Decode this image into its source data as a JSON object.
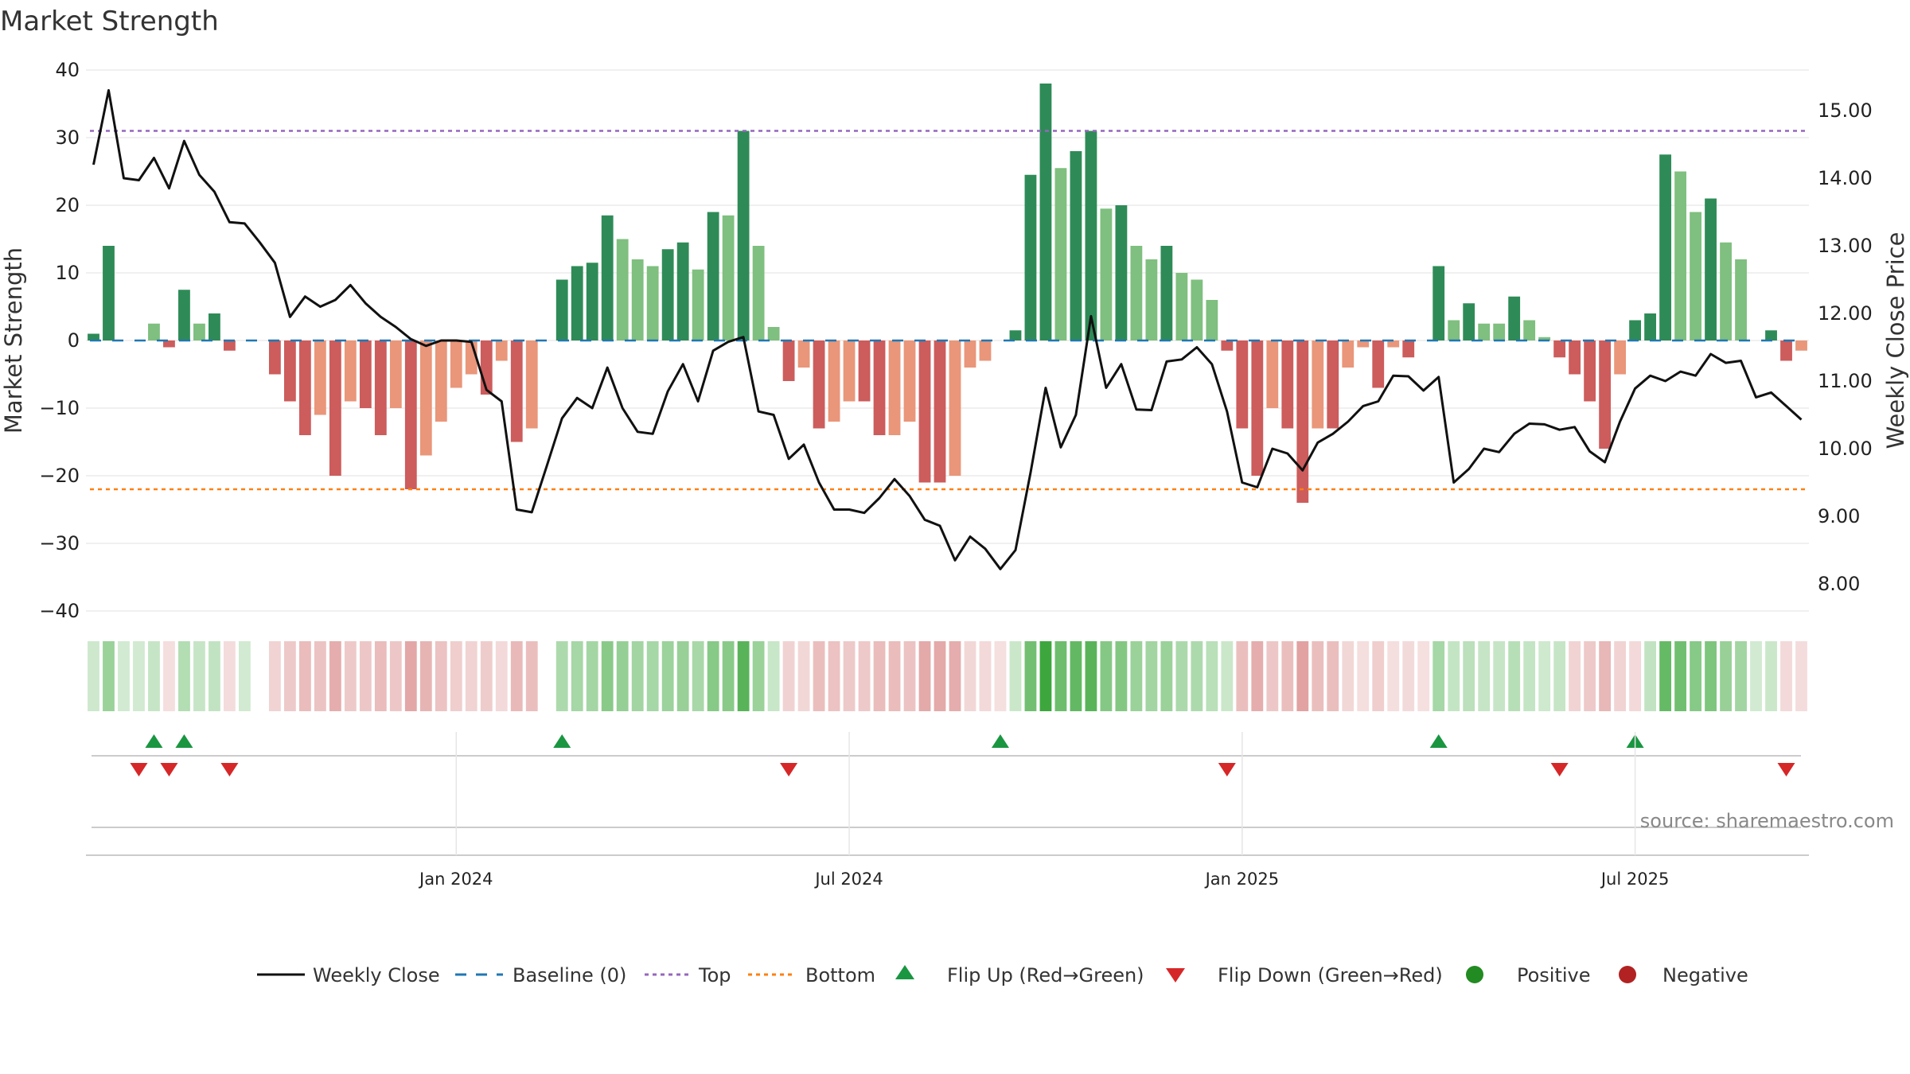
{
  "chart_data": {
    "type": "bar+line",
    "title": "Market Strength",
    "ylabel_left": "Market Strength",
    "ylabel_right": "Weekly Close Price",
    "ylim_left": [
      -40,
      40
    ],
    "ylim_right": [
      7.6,
      15.6
    ],
    "left_ticks": [
      40,
      30,
      20,
      10,
      0,
      -10,
      -20,
      -30,
      -40
    ],
    "right_ticks": [
      15.0,
      14.0,
      13.0,
      12.0,
      11.0,
      10.0,
      9.0,
      8.0
    ],
    "x_tick_labels": [
      "Jan 2024",
      "Jul 2024",
      "Jan 2025",
      "Jul 2025"
    ],
    "x_tick_weeks": [
      24,
      50,
      76,
      102
    ],
    "top_line": 31,
    "bottom_line": -22,
    "source": "source: sharemaestro.com",
    "colors": {
      "strong_pos": "#2e8b57",
      "weak_pos": "#7fbf7f",
      "strong_neg": "#cd5c5c",
      "weak_neg": "#e9967a",
      "price": "#111111",
      "baseline": "#1f77b4",
      "top": "#9467bd",
      "bottom": "#ff7f0e",
      "flip_up": "#1a9641",
      "flip_down": "#d62728",
      "positive": "#228b22",
      "negative": "#b22222"
    },
    "strength": [
      1,
      14,
      0,
      0,
      2.5,
      -1,
      7.5,
      2.5,
      4,
      -1.5,
      0,
      0,
      -5,
      -9,
      -14,
      -11,
      -20,
      -9,
      -10,
      -14,
      -10,
      -22,
      -17,
      -12,
      -7,
      -5,
      -8,
      -3,
      -15,
      -13,
      0,
      9,
      11,
      11.5,
      18.5,
      15,
      12,
      11,
      13.5,
      14.5,
      10.5,
      19,
      18.5,
      31,
      14,
      2,
      -6,
      -4,
      -13,
      -12,
      -9,
      -9,
      -14,
      -14,
      -12,
      -21,
      -21,
      -20,
      -4,
      -3,
      0,
      1.5,
      24.5,
      38,
      25.5,
      28,
      31,
      19.5,
      20,
      14,
      12,
      14,
      10,
      9,
      6,
      -1.5,
      -13,
      -20,
      -10,
      -13,
      -24,
      -13,
      -13,
      -4,
      -1,
      -7,
      -1,
      -2.5,
      0,
      11,
      3,
      5.5,
      2.5,
      2.5,
      6.5,
      3,
      0.5,
      -2.5,
      -5,
      -9,
      -16,
      -5,
      3,
      4,
      27.5,
      25,
      19,
      21,
      14.5,
      12,
      0,
      1.5,
      -3,
      -1.5
    ],
    "strength_strong": [
      1,
      1,
      0,
      0,
      0,
      1,
      1,
      0,
      1,
      1,
      0,
      0,
      1,
      1,
      1,
      0,
      1,
      0,
      1,
      1,
      0,
      1,
      0,
      0,
      0,
      0,
      1,
      0,
      1,
      0,
      0,
      1,
      1,
      1,
      1,
      0,
      0,
      0,
      1,
      1,
      0,
      1,
      0,
      1,
      0,
      0,
      1,
      0,
      1,
      0,
      0,
      1,
      1,
      0,
      0,
      1,
      1,
      0,
      0,
      0,
      0,
      1,
      1,
      1,
      0,
      1,
      1,
      0,
      1,
      0,
      0,
      1,
      0,
      0,
      0,
      1,
      1,
      1,
      0,
      1,
      1,
      0,
      1,
      0,
      0,
      1,
      0,
      1,
      0,
      1,
      0,
      1,
      0,
      0,
      1,
      0,
      0,
      1,
      1,
      1,
      1,
      0,
      1,
      1,
      1,
      0,
      0,
      1,
      0,
      0,
      0,
      1,
      1,
      0
    ],
    "price": [
      14.2,
      15.3,
      14.0,
      13.97,
      14.3,
      13.85,
      14.55,
      14.05,
      13.8,
      13.35,
      13.33,
      13.05,
      12.75,
      11.95,
      12.25,
      12.1,
      12.2,
      12.42,
      12.15,
      11.95,
      11.8,
      11.62,
      11.52,
      11.6,
      11.6,
      11.58,
      10.87,
      10.7,
      9.1,
      9.06,
      9.75,
      10.45,
      10.75,
      10.6,
      11.2,
      10.6,
      10.25,
      10.22,
      10.85,
      11.25,
      10.7,
      11.45,
      11.58,
      11.65,
      10.55,
      10.5,
      9.85,
      10.06,
      9.5,
      9.1,
      9.1,
      9.05,
      9.27,
      9.55,
      9.3,
      8.95,
      8.86,
      8.35,
      8.7,
      8.52,
      8.22,
      8.5,
      9.65,
      10.9,
      10.02,
      10.5,
      11.96,
      10.9,
      11.25,
      10.58,
      10.57,
      11.29,
      11.32,
      11.5,
      11.25,
      10.55,
      9.5,
      9.43,
      10.0,
      9.93,
      9.68,
      10.09,
      10.22,
      10.4,
      10.63,
      10.7,
      11.08,
      11.07,
      10.86,
      11.06,
      9.5,
      9.7,
      10.0,
      9.95,
      10.22,
      10.37,
      10.36,
      10.28,
      10.32,
      9.96,
      9.8,
      10.4,
      10.89,
      11.08,
      11.0,
      11.14,
      11.08,
      11.4,
      11.27,
      11.3,
      10.76,
      10.83,
      10.63,
      10.43
    ],
    "regime_strip": [
      {
        "start": 0,
        "end": 10,
        "sign": "mixed"
      },
      {
        "start": 12,
        "end": 29,
        "sign": "negative"
      },
      {
        "start": 31,
        "end": 45,
        "sign": "positive"
      },
      {
        "start": 46,
        "end": 60,
        "sign": "negative"
      },
      {
        "start": 61,
        "end": 75,
        "sign": "positive"
      },
      {
        "start": 76,
        "end": 88,
        "sign": "negative"
      },
      {
        "start": 89,
        "end": 97,
        "sign": "positive"
      },
      {
        "start": 98,
        "end": 102,
        "sign": "negative"
      },
      {
        "start": 103,
        "end": 111,
        "sign": "positive"
      },
      {
        "start": 112,
        "end": 114,
        "sign": "negative"
      }
    ],
    "flip_up_weeks": [
      4,
      6,
      31,
      60,
      89,
      102
    ],
    "flip_down_weeks": [
      3,
      5,
      9,
      46,
      75,
      97,
      112
    ],
    "legend": [
      {
        "label": "Weekly Close",
        "kind": "line"
      },
      {
        "label": "Baseline (0)",
        "kind": "dash"
      },
      {
        "label": "Top",
        "kind": "dot-top"
      },
      {
        "label": "Bottom",
        "kind": "dot-bottom"
      },
      {
        "label": "Flip Up (Red→Green)",
        "kind": "tri-up"
      },
      {
        "label": "Flip Down (Green→Red)",
        "kind": "tri-down"
      },
      {
        "label": "Positive",
        "kind": "circle-pos"
      },
      {
        "label": "Negative",
        "kind": "circle-neg"
      }
    ]
  }
}
